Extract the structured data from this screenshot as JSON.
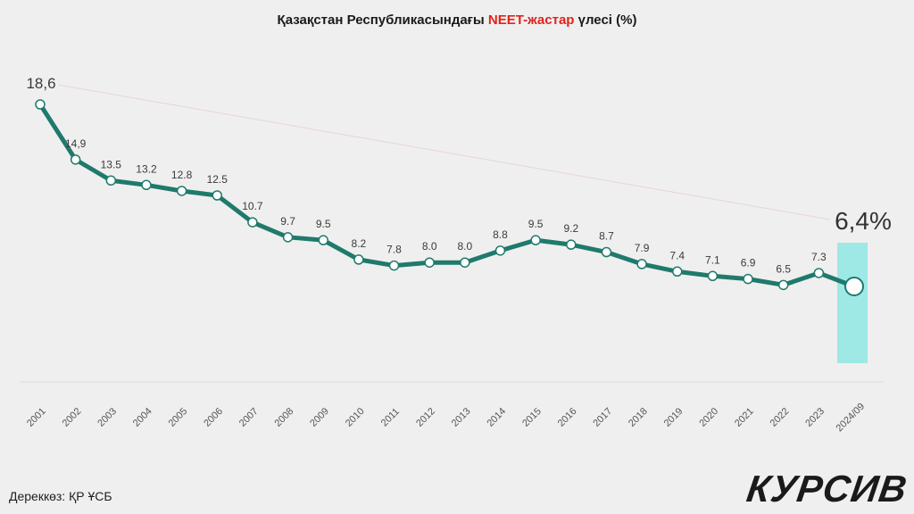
{
  "header": {
    "title_prefix": "Қазақстан Республикасындағы ",
    "title_highlight": "NEET-жастар",
    "title_suffix": " үлесі  (%)"
  },
  "footer": {
    "source": "Дереккөз: ҚР ҰСБ",
    "brand": "КУРСИВ"
  },
  "colors": {
    "line": "#1f7a6c",
    "highlight_bar": "#9ee8e6",
    "title_highlight": "#e0231b",
    "trend": "#e9d4d4"
  },
  "chart_data": {
    "type": "line",
    "title": "Қазақстан Республикасындағы NEET-жастар үлесі  (%)",
    "categories": [
      "2001",
      "2002",
      "2003",
      "2004",
      "2005",
      "2006",
      "2007",
      "2008",
      "2009",
      "2010",
      "2011",
      "2012",
      "2013",
      "2014",
      "2015",
      "2016",
      "2017",
      "2018",
      "2019",
      "2020",
      "2021",
      "2022",
      "2023",
      "2024/09"
    ],
    "value_labels": [
      "18,6",
      "14,9",
      "13.5",
      "13.2",
      "12.8",
      "12.5",
      "10.7",
      "9.7",
      "9.5",
      "8.2",
      "7.8",
      "8.0",
      "8.0",
      "8.8",
      "9.5",
      "9.2",
      "8.7",
      "7.9",
      "7.4",
      "7.1",
      "6.9",
      "6.5",
      "7.3",
      "6,4%"
    ],
    "values": [
      18.6,
      14.9,
      13.5,
      13.2,
      12.8,
      12.5,
      10.7,
      9.7,
      9.5,
      8.2,
      7.8,
      8.0,
      8.0,
      8.8,
      9.5,
      9.2,
      8.7,
      7.9,
      7.4,
      7.1,
      6.9,
      6.5,
      7.3,
      6.4
    ],
    "ylim": [
      0,
      20
    ],
    "grid": false,
    "highlight_category": "2024/09",
    "trend_line": true
  }
}
